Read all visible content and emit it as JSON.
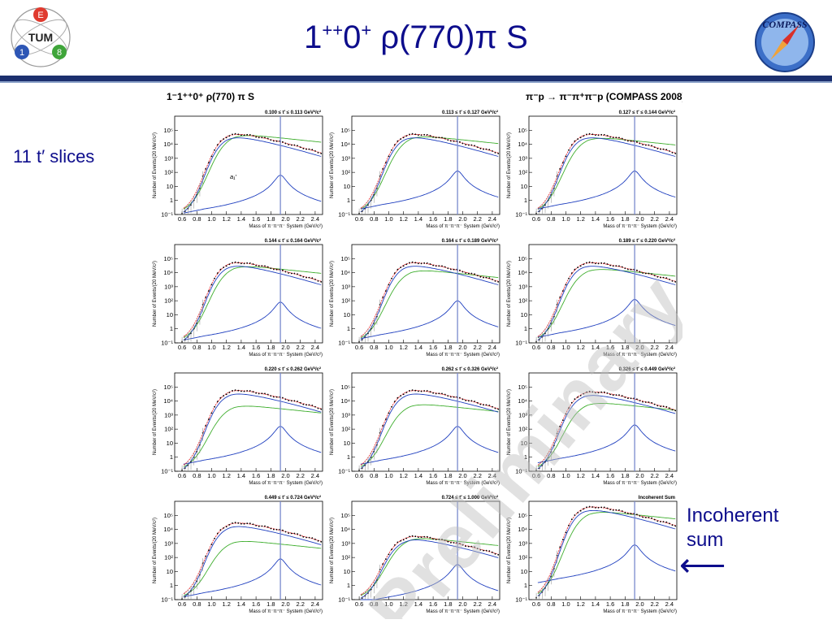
{
  "slide": {
    "title_main": "1",
    "title_sup1": "++",
    "title_mid": "0",
    "title_sup2": "+",
    "title_rest": " ρ(770)π S",
    "side_label_slices": "11 t′ slices",
    "side_label_incoherent": "Incoherent sum",
    "side_arrow": "⟵",
    "logo_left_letters": [
      "E",
      "TUM",
      "1",
      "8"
    ],
    "logo_right_text": "COMPASS",
    "annotation": "a₁′",
    "watermark": "Preliminary"
  },
  "figure": {
    "header_left": "1⁻1⁺⁺0⁺ ρ(770) π S",
    "header_right": "π⁻p → π⁻π⁺π⁻p (COMPASS 2008)",
    "x_axis_label": "Mass of π⁻π⁺π⁻ System (GeV/c²)",
    "y_axis_label": "Number of Events/(20 MeV/c²)",
    "x_ticks": [
      "0.6",
      "0.8",
      "1.0",
      "1.2",
      "1.4",
      "1.6",
      "1.8",
      "2.0",
      "2.2",
      "2.4"
    ],
    "y_ticks": [
      "10⁻¹",
      "1",
      "10",
      "10²",
      "10³",
      "10⁴",
      "10⁵"
    ],
    "panel_titles": [
      "0.100 ≤ t′ ≤ 0.113 GeV²/c²",
      "0.113 ≤ t′ ≤ 0.127 GeV²/c²",
      "0.127 ≤ t′ ≤ 0.144 GeV²/c²",
      "0.144 ≤ t′ ≤ 0.164 GeV²/c²",
      "0.164 ≤ t′ ≤ 0.189 GeV²/c²",
      "0.189 ≤ t′ ≤ 0.220 GeV²/c²",
      "0.220 ≤ t′ ≤ 0.262 GeV²/c²",
      "0.262 ≤ t′ ≤ 0.326 GeV²/c²",
      "0.326 ≤ t′ ≤ 0.449 GeV²/c²",
      "0.449 ≤ t′ ≤ 0.724 GeV²/c²",
      "0.724 ≤ t′ ≤ 1.000 GeV²/c²",
      "Incoherent Sum"
    ],
    "colors": {
      "data": "#000000",
      "total": "#e8282d",
      "component": "#1f3fbf",
      "background": "#3fae2e",
      "marker_line": "#7788cc"
    }
  },
  "chart_data": {
    "type": "line",
    "xlabel": "Mass of π⁻π⁺π⁻ System (GeV/c²)",
    "ylabel": "Number of Events/(20 MeV/c²)",
    "xlim": [
      0.5,
      2.5
    ],
    "ylim": [
      0.1,
      1000000
    ],
    "y_scale": "log",
    "grid": false,
    "vertical_marker_x": 1.93,
    "panels": [
      {
        "title": "0.100 ≤ t′ ≤ 0.113 GeV²/c²",
        "peak": 1.2,
        "amp": 4.9,
        "comp": 1.8,
        "bg": 4.8
      },
      {
        "title": "0.113 ≤ t′ ≤ 0.127 GeV²/c²",
        "peak": 1.2,
        "amp": 4.9,
        "comp": 2.1,
        "bg": 4.7
      },
      {
        "title": "0.127 ≤ t′ ≤ 0.144 GeV²/c²",
        "peak": 1.2,
        "amp": 4.9,
        "comp": 2.1,
        "bg": 4.6
      },
      {
        "title": "0.144 ≤ t′ ≤ 0.164 GeV²/c²",
        "peak": 1.2,
        "amp": 4.9,
        "comp": 1.9,
        "bg": 4.6
      },
      {
        "title": "0.164 ≤ t′ ≤ 0.189 GeV²/c²",
        "peak": 1.2,
        "amp": 4.9,
        "comp": 2.0,
        "bg": 4.3
      },
      {
        "title": "0.189 ≤ t′ ≤ 0.220 GeV²/c²",
        "peak": 1.2,
        "amp": 4.9,
        "comp": 2.1,
        "bg": 4.4
      },
      {
        "title": "0.220 ≤ t′ ≤ 0.262 GeV²/c²",
        "peak": 1.25,
        "amp": 4.9,
        "comp": 2.2,
        "bg": 3.8
      },
      {
        "title": "0.262 ≤ t′ ≤ 0.326 GeV²/c²",
        "peak": 1.25,
        "amp": 4.9,
        "comp": 2.2,
        "bg": 3.9
      },
      {
        "title": "0.326 ≤ t′ ≤ 0.449 GeV²/c²",
        "peak": 1.25,
        "amp": 4.8,
        "comp": 2.3,
        "bg": 4.0
      },
      {
        "title": "0.449 ≤ t′ ≤ 0.724 GeV²/c²",
        "peak": 1.25,
        "amp": 4.6,
        "comp": 1.9,
        "bg": 3.3
      },
      {
        "title": "0.724 ≤ t′ ≤ 1.000 GeV²/c²",
        "peak": 1.3,
        "amp": 3.6,
        "comp": 1.5,
        "bg": 3.5
      },
      {
        "title": "Incoherent Sum",
        "peak": 1.2,
        "amp": 5.8,
        "comp": 2.9,
        "bg": 5.4
      }
    ]
  }
}
